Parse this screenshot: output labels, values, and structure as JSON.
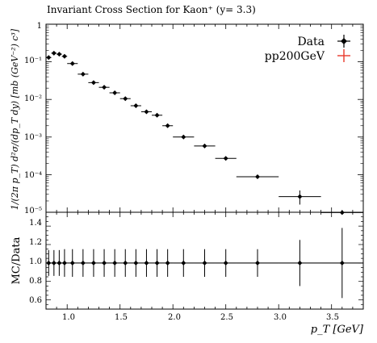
{
  "chart_data": [
    {
      "panel": "main",
      "type": "scatter",
      "title": "Invariant Cross Section for Kaon⁺ (y= 3.3)",
      "ylabel": "1/(2π p_T) d²σ/(dp_T dy) [mb (GeV⁻²) c³]",
      "xlabel": "",
      "yscale": "log",
      "xlim": [
        0.8,
        3.8
      ],
      "ylim": [
        1e-05,
        1
      ],
      "ytick_labels": [
        "1",
        "10⁻¹",
        "10⁻²",
        "10⁻³",
        "10⁻⁴",
        "10⁻⁵"
      ],
      "legend_position": "top-right",
      "series": [
        {
          "name": "Data",
          "color": "#000000",
          "points": [
            {
              "x": 0.825,
              "xerr": 0.025,
              "y": 0.13
            },
            {
              "x": 0.875,
              "xerr": 0.025,
              "y": 0.17
            },
            {
              "x": 0.925,
              "xerr": 0.025,
              "y": 0.16
            },
            {
              "x": 0.975,
              "xerr": 0.025,
              "y": 0.14
            },
            {
              "x": 1.05,
              "xerr": 0.05,
              "y": 0.09
            },
            {
              "x": 1.15,
              "xerr": 0.05,
              "y": 0.047
            },
            {
              "x": 1.25,
              "xerr": 0.05,
              "y": 0.028
            },
            {
              "x": 1.35,
              "xerr": 0.05,
              "y": 0.021
            },
            {
              "x": 1.45,
              "xerr": 0.05,
              "y": 0.015
            },
            {
              "x": 1.55,
              "xerr": 0.05,
              "y": 0.0105
            },
            {
              "x": 1.65,
              "xerr": 0.05,
              "y": 0.0068
            },
            {
              "x": 1.75,
              "xerr": 0.05,
              "y": 0.0047
            },
            {
              "x": 1.85,
              "xerr": 0.05,
              "y": 0.0038
            },
            {
              "x": 1.95,
              "xerr": 0.05,
              "y": 0.002
            },
            {
              "x": 2.1,
              "xerr": 0.1,
              "y": 0.001
            },
            {
              "x": 2.3,
              "xerr": 0.1,
              "y": 0.00058
            },
            {
              "x": 2.5,
              "xerr": 0.1,
              "y": 0.00027
            },
            {
              "x": 2.8,
              "xerr": 0.2,
              "y": 8.8e-05
            },
            {
              "x": 3.2,
              "xerr": 0.2,
              "y": 2.6e-05,
              "yerr_up": 1.2e-05,
              "yerr_down": 1e-05
            },
            {
              "x": 3.6,
              "xerr": 0.2,
              "y": 9.8e-06
            }
          ]
        },
        {
          "name": "pp200GeV",
          "color": "#e8382a",
          "points": []
        }
      ]
    },
    {
      "panel": "ratio",
      "type": "scatter",
      "ylabel": "MC/Data",
      "xlabel": "p_T [GeV]",
      "xlim": [
        0.8,
        3.8
      ],
      "ylim": [
        0.5,
        1.55
      ],
      "xticks": [
        1.0,
        1.5,
        2.0,
        2.5,
        3.0,
        3.5
      ],
      "xtick_labels": [
        "1.0",
        "1.5",
        "2.0",
        "2.5",
        "3.0",
        "3.5"
      ],
      "yticks": [
        0.6,
        0.8,
        1.0,
        1.2,
        1.4
      ],
      "ytick_labels": [
        "0.6",
        "0.8",
        "1.0",
        "1.2",
        "1.4"
      ],
      "reference_line": 1.0,
      "series": [
        {
          "name": "Data",
          "color": "#000000",
          "points": [
            {
              "x": 0.825,
              "xerr": 0.025,
              "y": 1.0,
              "yerr": 0.14
            },
            {
              "x": 0.875,
              "xerr": 0.025,
              "y": 1.0,
              "yerr": 0.14
            },
            {
              "x": 0.925,
              "xerr": 0.025,
              "y": 1.0,
              "yerr": 0.14
            },
            {
              "x": 0.975,
              "xerr": 0.025,
              "y": 1.0,
              "yerr": 0.15
            },
            {
              "x": 1.05,
              "xerr": 0.05,
              "y": 1.0,
              "yerr": 0.15
            },
            {
              "x": 1.15,
              "xerr": 0.05,
              "y": 1.0,
              "yerr": 0.15
            },
            {
              "x": 1.25,
              "xerr": 0.05,
              "y": 1.0,
              "yerr": 0.15
            },
            {
              "x": 1.35,
              "xerr": 0.05,
              "y": 1.0,
              "yerr": 0.15
            },
            {
              "x": 1.45,
              "xerr": 0.05,
              "y": 1.0,
              "yerr": 0.15
            },
            {
              "x": 1.55,
              "xerr": 0.05,
              "y": 1.0,
              "yerr": 0.15
            },
            {
              "x": 1.65,
              "xerr": 0.05,
              "y": 1.0,
              "yerr": 0.15
            },
            {
              "x": 1.75,
              "xerr": 0.05,
              "y": 1.0,
              "yerr": 0.15
            },
            {
              "x": 1.85,
              "xerr": 0.05,
              "y": 1.0,
              "yerr": 0.15
            },
            {
              "x": 1.95,
              "xerr": 0.05,
              "y": 1.0,
              "yerr": 0.15
            },
            {
              "x": 2.1,
              "xerr": 0.1,
              "y": 1.0,
              "yerr": 0.15
            },
            {
              "x": 2.3,
              "xerr": 0.1,
              "y": 1.0,
              "yerr": 0.15
            },
            {
              "x": 2.5,
              "xerr": 0.1,
              "y": 1.0,
              "yerr": 0.15
            },
            {
              "x": 2.8,
              "xerr": 0.2,
              "y": 1.0,
              "yerr": 0.15
            },
            {
              "x": 3.2,
              "xerr": 0.2,
              "y": 1.0,
              "yerr": 0.25
            },
            {
              "x": 3.6,
              "xerr": 0.2,
              "y": 1.0,
              "yerr": 0.38
            }
          ]
        }
      ]
    }
  ]
}
